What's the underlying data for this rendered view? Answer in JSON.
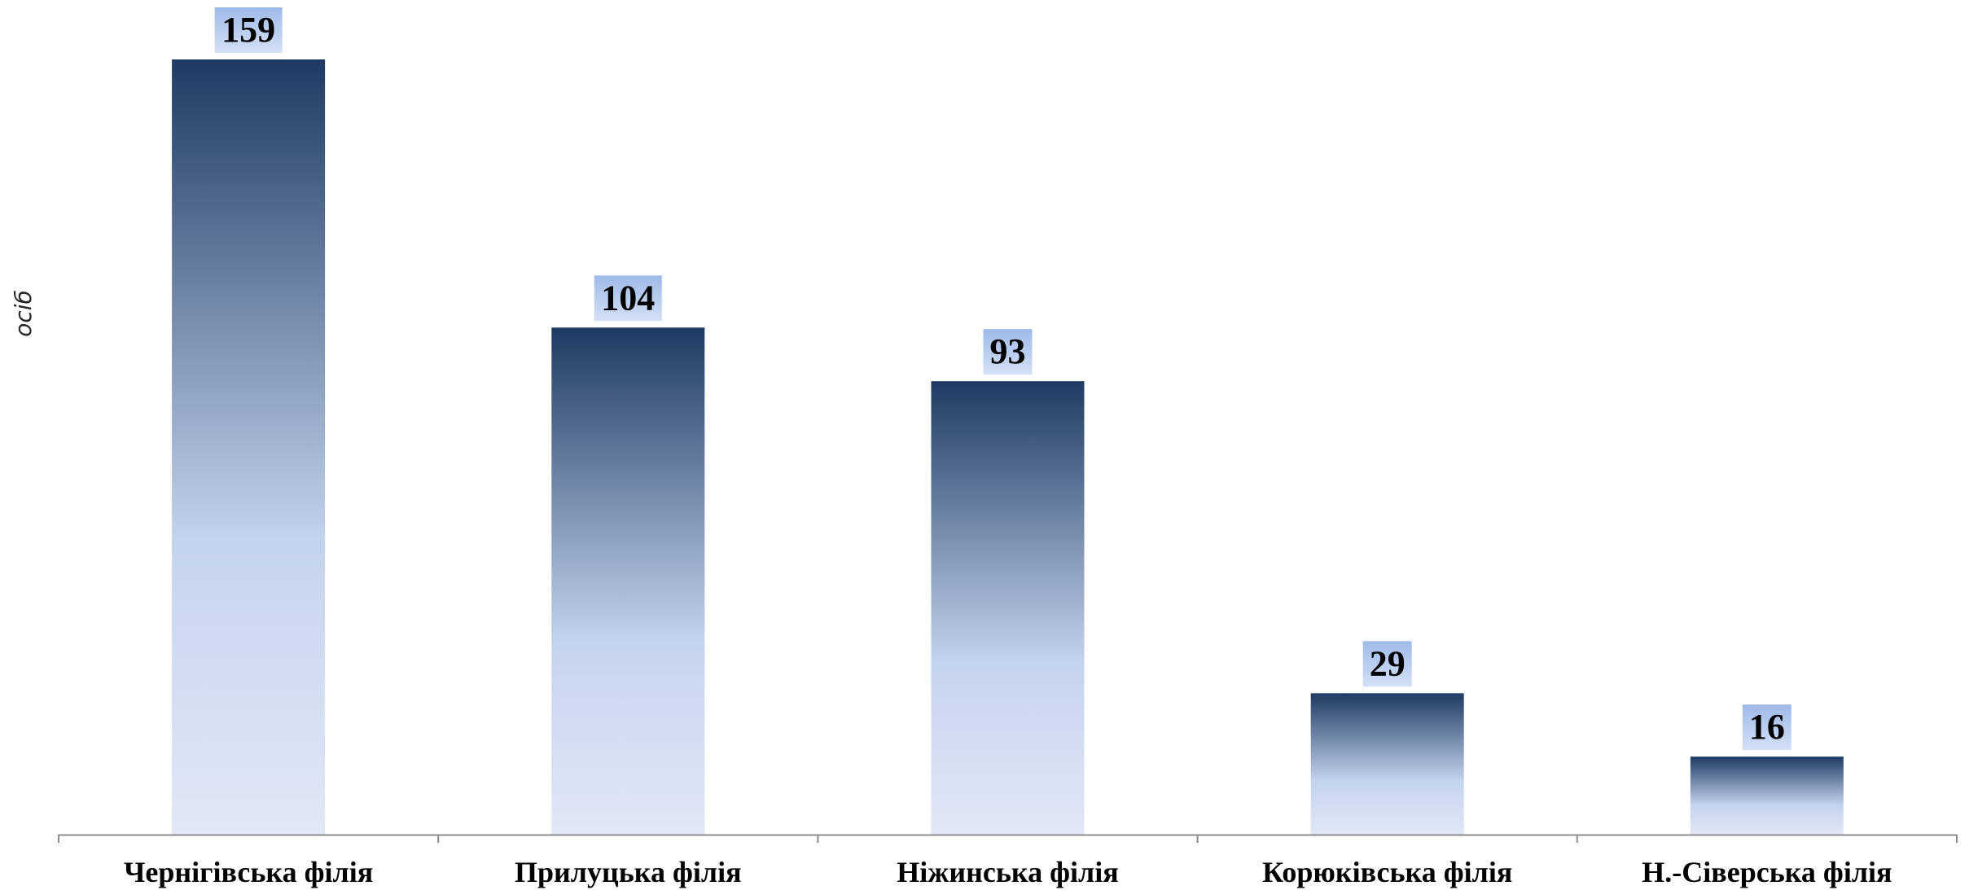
{
  "chart_data": {
    "type": "bar",
    "ylabel": "осіб",
    "xlabel": "",
    "title": "",
    "categories": [
      "Чернігівська  філія",
      "Прилуцька філія",
      "Ніжинська філія",
      "Корюківська філія",
      "Н.-Сіверська філія"
    ],
    "values": [
      159,
      104,
      93,
      29,
      16
    ],
    "ylim": [
      0,
      165
    ],
    "grid": false,
    "data_labels": true,
    "colors": {
      "bar_top": "#1f3a63",
      "bar_mid": "#c4d3ee",
      "bar_bottom": "#e1e8f6",
      "label_bg": "#b6cbef",
      "axis": "#8c8c8c"
    }
  }
}
